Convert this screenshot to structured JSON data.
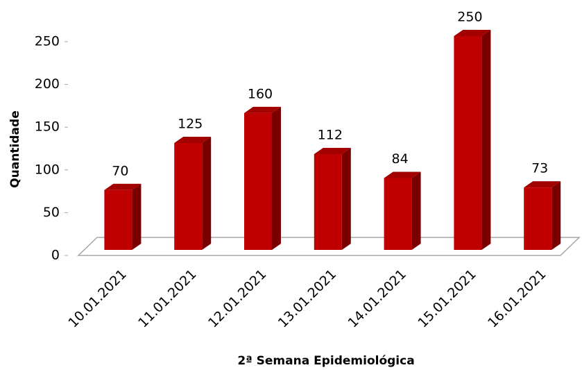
{
  "chart_data": {
    "type": "bar3d",
    "categories": [
      "10.01.2021",
      "11.01.2021",
      "12.01.2021",
      "13.01.2021",
      "14.01.2021",
      "15.01.2021",
      "16.01.2021"
    ],
    "values": [
      70,
      125,
      160,
      112,
      84,
      250,
      73
    ],
    "color": "#c00000",
    "ylim": [
      0,
      250
    ],
    "yticks": [
      0,
      50,
      100,
      150,
      200,
      250
    ],
    "xlabel": "2ª Semana Epidemiológica",
    "ylabel": "Quantidade"
  }
}
